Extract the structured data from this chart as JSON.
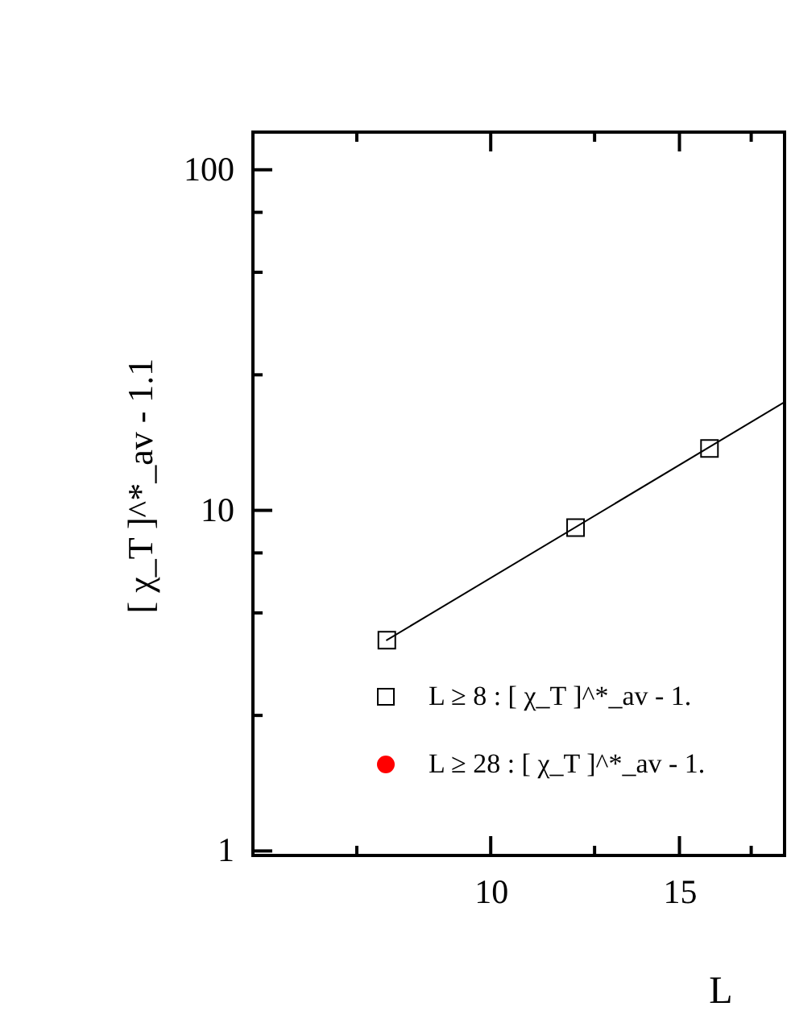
{
  "chart_data": {
    "type": "scatter",
    "xlabel": "L",
    "ylabel": "[ χ_T ]^*_av - 1.1",
    "log": "xy",
    "grid": false,
    "legend": "bottom right",
    "xlim": [
      6,
      18.8
    ],
    "ylim": [
      0.97,
      129
    ],
    "xticks": [
      {
        "value": 7.5,
        "label": null
      },
      10,
      {
        "value": 12.5,
        "label": null
      },
      15,
      {
        "value": 17.5,
        "label": null
      }
    ],
    "yticks": [
      1,
      {
        "value": 2.5,
        "label": null
      },
      {
        "value": 5,
        "label": null
      },
      {
        "value": 7.5,
        "label": null
      },
      10,
      {
        "value": 25,
        "label": null
      },
      {
        "value": 50,
        "label": null
      },
      {
        "value": 75,
        "label": null
      },
      100
    ],
    "series": [
      {
        "type": "line",
        "color": "#000000",
        "line_style": "solid",
        "marker": "none",
        "x": [
          8,
          18.8
        ],
        "values": [
          4.16,
          20.8
        ]
      },
      {
        "name": "L ≥ 8 : [ χ_T ]^*_av - 1.",
        "marker": "square",
        "color": "#000000",
        "x": [
          8,
          12,
          16
        ],
        "values": [
          4.16,
          8.9,
          15.2
        ]
      },
      {
        "name": "L ≥ 28 : [ χ_T ]^*_av - 1.",
        "marker": "circle",
        "color": "#ff0000"
      }
    ]
  }
}
